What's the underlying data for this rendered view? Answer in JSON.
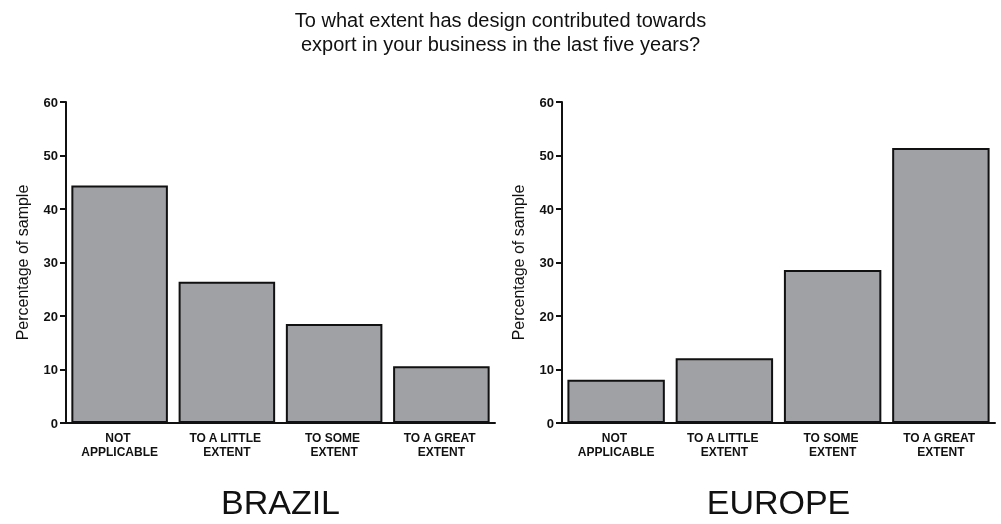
{
  "chart_data": [
    {
      "type": "bar",
      "title": "To what extent has design contributed towards\nexport in your business in the last five years?",
      "xlabel": "BRAZIL",
      "ylabel": "Percentage of sample",
      "categories": [
        "NOT APPLICABLE",
        "TO A LITTLE EXTENT",
        "TO SOME EXTENT",
        "TO A GREAT EXTENT"
      ],
      "values": [
        44.4,
        26.4,
        18.5,
        10.6
      ],
      "color": "#a0a1a5",
      "ylim": [
        0,
        60
      ],
      "yticks": [
        0,
        10,
        20,
        30,
        40,
        50,
        60
      ],
      "grid": false
    },
    {
      "type": "bar",
      "xlabel": "EUROPE",
      "ylabel": "Percentage of sample",
      "categories": [
        "NOT APPLICABLE",
        "TO A LITTLE EXTENT",
        "TO SOME EXTENT",
        "TO A GREAT EXTENT"
      ],
      "values": [
        8.1,
        12.1,
        28.6,
        51.4
      ],
      "color": "#a0a1a5",
      "ylim": [
        0,
        60
      ],
      "yticks": [
        0,
        10,
        20,
        30,
        40,
        50,
        60
      ],
      "grid": false
    }
  ]
}
